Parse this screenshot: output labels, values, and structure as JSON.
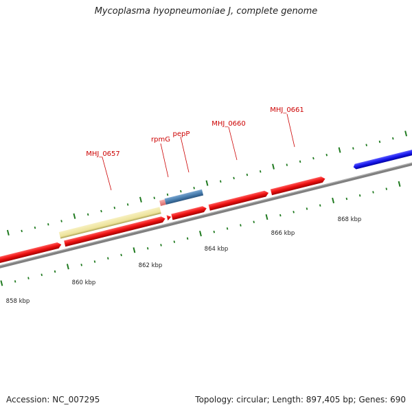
{
  "header": {
    "title": "Mycoplasma hyopneumoniae J, complete genome"
  },
  "footer": {
    "accession": "Accession: NC_007295",
    "topology": "Topology: circular; Length: 897,405 bp; Genes: 690"
  },
  "colors": {
    "cds_red": "#ee1111",
    "rna_pink": "#ee8888",
    "pale_yellow": "#f0e6a0",
    "steel_blue": "#4a7fb0",
    "reverse_blue": "#1a1aee",
    "backbone_grey": "#808080",
    "tick_green": "#1f7a1f",
    "label_red": "#cc0000"
  },
  "scale_labels": [
    {
      "kbp": 858,
      "text": "858 kbp"
    },
    {
      "kbp": 860,
      "text": "860 kbp"
    },
    {
      "kbp": 862,
      "text": "862 kbp"
    },
    {
      "kbp": 864,
      "text": "864 kbp"
    },
    {
      "kbp": 866,
      "text": "866 kbp"
    },
    {
      "kbp": 868,
      "text": "868 kbp"
    }
  ],
  "gene_labels": [
    {
      "name": "MHJ_0657",
      "text": "MHJ_0657"
    },
    {
      "name": "rpmG",
      "text": "rpmG"
    },
    {
      "name": "pepP",
      "text": "pepP"
    },
    {
      "name": "MHJ_0660",
      "text": "MHJ_0660"
    },
    {
      "name": "MHJ_0661",
      "text": "MHJ_0661"
    }
  ]
}
